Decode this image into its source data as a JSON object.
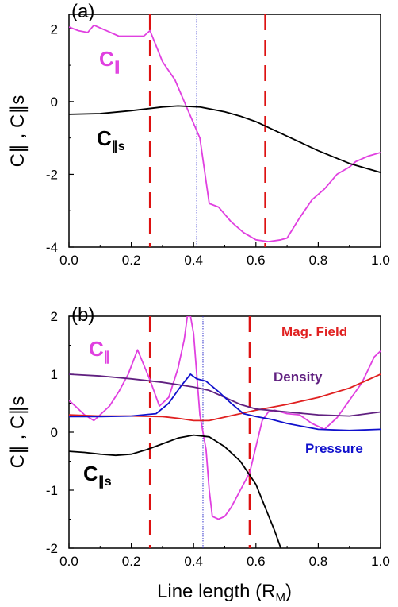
{
  "chart_data": [
    {
      "type": "line",
      "panel_label": "(a)",
      "ylabel": "C∥ , C∥s",
      "xlim": [
        0,
        1
      ],
      "ylim": [
        -4,
        2.4
      ],
      "xticks": [
        "0.0",
        "0.2",
        "0.4",
        "0.6",
        "0.8",
        "1.0"
      ],
      "yticks": [
        "-4",
        "-2",
        "0",
        "2"
      ],
      "vlines_dashed": [
        0.26,
        0.63
      ],
      "vline_dotted": 0.41,
      "series": [
        {
          "name": "C∥",
          "label_text": "C",
          "label_sub": "∥",
          "color": "#e040e0",
          "x": [
            0.0,
            0.03,
            0.06,
            0.08,
            0.12,
            0.16,
            0.2,
            0.24,
            0.26,
            0.3,
            0.34,
            0.38,
            0.4,
            0.42,
            0.45,
            0.48,
            0.52,
            0.56,
            0.6,
            0.64,
            0.68,
            0.7,
            0.74,
            0.78,
            0.82,
            0.86,
            0.9,
            0.92,
            0.96,
            1.0
          ],
          "y": [
            2.05,
            1.95,
            1.9,
            2.1,
            1.95,
            1.8,
            1.8,
            1.8,
            1.95,
            1.1,
            0.6,
            -0.2,
            -0.6,
            -1.0,
            -2.8,
            -2.9,
            -3.3,
            -3.6,
            -3.8,
            -3.85,
            -3.8,
            -3.75,
            -3.2,
            -2.7,
            -2.4,
            -2.0,
            -1.8,
            -1.65,
            -1.5,
            -1.4
          ]
        },
        {
          "name": "C∥s",
          "label_text": "C",
          "label_sub": "∥s",
          "color": "#000000",
          "x": [
            0.0,
            0.1,
            0.2,
            0.3,
            0.35,
            0.42,
            0.5,
            0.55,
            0.6,
            0.7,
            0.8,
            0.9,
            1.0
          ],
          "y": [
            -0.35,
            -0.33,
            -0.25,
            -0.15,
            -0.12,
            -0.15,
            -0.28,
            -0.4,
            -0.55,
            -0.95,
            -1.35,
            -1.7,
            -1.95
          ]
        }
      ]
    },
    {
      "type": "line",
      "panel_label": "(b)",
      "ylabel": "C∥ , C∥s",
      "xlabel": "Line length (R",
      "xlabel_sub": "M",
      "xlabel_end": ")",
      "xlim": [
        0,
        1
      ],
      "ylim": [
        -2,
        2
      ],
      "xticks": [
        "0.0",
        "0.2",
        "0.4",
        "0.6",
        "0.8",
        "1.0"
      ],
      "yticks": [
        "-2",
        "-1",
        "0",
        "1",
        "2"
      ],
      "vlines_dashed": [
        0.26,
        0.58
      ],
      "vline_dotted": 0.43,
      "series": [
        {
          "name": "C∥",
          "label_text": "C",
          "label_sub": "∥",
          "color": "#e040e0",
          "x": [
            0.0,
            0.02,
            0.05,
            0.08,
            0.1,
            0.13,
            0.16,
            0.19,
            0.22,
            0.26,
            0.29,
            0.32,
            0.35,
            0.37,
            0.38,
            0.39,
            0.4,
            0.42,
            0.44,
            0.45,
            0.46,
            0.48,
            0.5,
            0.52,
            0.55,
            0.58,
            0.62,
            0.64,
            0.66,
            0.7,
            0.74,
            0.78,
            0.82,
            0.86,
            0.9,
            0.94,
            0.98,
            1.0
          ],
          "y": [
            0.55,
            0.45,
            0.3,
            0.2,
            0.3,
            0.45,
            0.7,
            1.0,
            1.42,
            0.9,
            0.45,
            0.6,
            1.1,
            1.6,
            2.0,
            2.0,
            1.7,
            0.3,
            -0.3,
            -1.0,
            -1.45,
            -1.5,
            -1.45,
            -1.3,
            -1.0,
            -0.7,
            0.2,
            0.35,
            0.38,
            0.32,
            0.3,
            0.15,
            0.05,
            0.25,
            0.55,
            0.85,
            1.3,
            1.4
          ]
        },
        {
          "name": "C∥s",
          "label_text": "C",
          "label_sub": "∥s",
          "color": "#000000",
          "x": [
            0.0,
            0.05,
            0.1,
            0.15,
            0.2,
            0.25,
            0.3,
            0.35,
            0.4,
            0.45,
            0.5,
            0.55,
            0.6,
            0.63,
            0.66,
            0.68
          ],
          "y": [
            -0.33,
            -0.35,
            -0.38,
            -0.4,
            -0.38,
            -0.3,
            -0.2,
            -0.1,
            -0.05,
            -0.08,
            -0.25,
            -0.5,
            -0.9,
            -1.3,
            -1.7,
            -2.0
          ]
        },
        {
          "name": "Mag. Field",
          "color": "#e02020",
          "x": [
            0.0,
            0.1,
            0.2,
            0.3,
            0.35,
            0.4,
            0.45,
            0.5,
            0.6,
            0.7,
            0.8,
            0.9,
            1.0
          ],
          "y": [
            0.3,
            0.28,
            0.28,
            0.27,
            0.24,
            0.2,
            0.2,
            0.26,
            0.38,
            0.48,
            0.6,
            0.76,
            1.0
          ]
        },
        {
          "name": "Density",
          "color": "#602080",
          "x": [
            0.0,
            0.1,
            0.2,
            0.3,
            0.35,
            0.4,
            0.45,
            0.5,
            0.55,
            0.6,
            0.7,
            0.8,
            0.9,
            1.0
          ],
          "y": [
            1.0,
            0.97,
            0.92,
            0.86,
            0.82,
            0.78,
            0.72,
            0.6,
            0.48,
            0.4,
            0.35,
            0.3,
            0.28,
            0.35
          ]
        },
        {
          "name": "Pressure",
          "color": "#1010cc",
          "x": [
            0.0,
            0.1,
            0.2,
            0.28,
            0.32,
            0.36,
            0.39,
            0.41,
            0.44,
            0.48,
            0.52,
            0.56,
            0.6,
            0.65,
            0.7,
            0.8,
            0.9,
            1.0
          ],
          "y": [
            0.27,
            0.27,
            0.28,
            0.32,
            0.5,
            0.8,
            1.0,
            0.92,
            0.88,
            0.7,
            0.5,
            0.32,
            0.27,
            0.22,
            0.15,
            0.05,
            0.03,
            0.05
          ]
        }
      ]
    }
  ]
}
